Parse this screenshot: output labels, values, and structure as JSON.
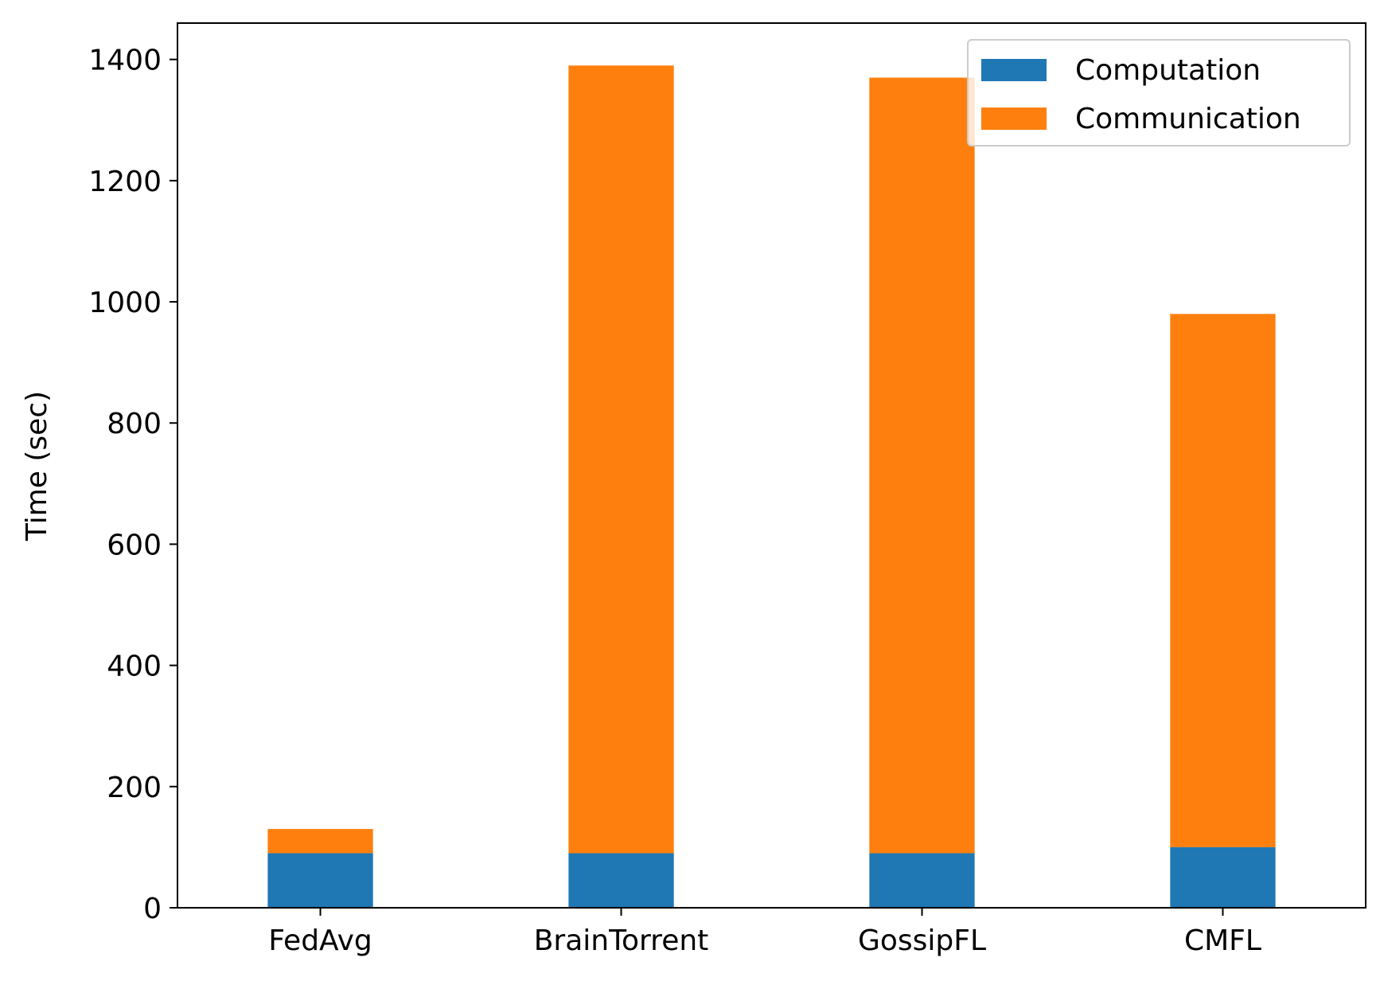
{
  "chart_data": {
    "type": "bar",
    "stacked": true,
    "title": "",
    "xlabel": "",
    "ylabel": "Time (sec)",
    "ylim": [
      0,
      1460
    ],
    "yticks": [
      0,
      200,
      400,
      600,
      800,
      1000,
      1200,
      1400
    ],
    "categories": [
      "FedAvg",
      "BrainTorrent",
      "GossipFL",
      "CMFL"
    ],
    "series": [
      {
        "name": "Computation",
        "color": "#1f77b4",
        "values": [
          90,
          90,
          90,
          100
        ]
      },
      {
        "name": "Communication",
        "color": "#ff7f0e",
        "values": [
          40,
          1300,
          1280,
          880
        ]
      }
    ],
    "legend": {
      "position": "top-right"
    },
    "grid": false
  }
}
